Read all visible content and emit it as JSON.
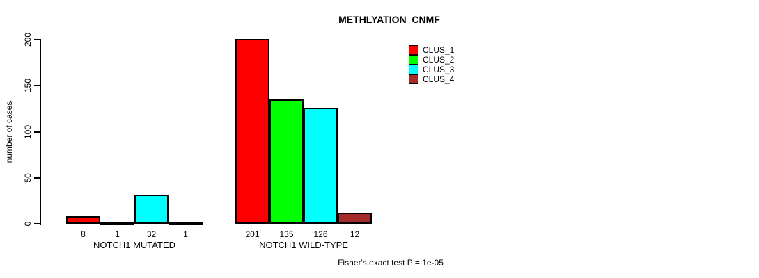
{
  "chart_data": {
    "type": "bar",
    "title": "METHLYATION_CNMF",
    "ylabel": "number of cases",
    "xlabel": "",
    "ylim": [
      0,
      200
    ],
    "yticks": [
      0,
      50,
      100,
      150,
      200
    ],
    "grid": false,
    "legend_position": "top-right",
    "categories": [
      "NOTCH1 MUTATED",
      "NOTCH1 WILD-TYPE"
    ],
    "series": [
      {
        "name": "CLUS_1",
        "color": "#FF0000",
        "values": [
          8,
          201
        ]
      },
      {
        "name": "CLUS_2",
        "color": "#00FF00",
        "values": [
          1,
          135
        ]
      },
      {
        "name": "CLUS_3",
        "color": "#00FFFF",
        "values": [
          32,
          126
        ]
      },
      {
        "name": "CLUS_4",
        "color": "#A52A2A",
        "values": [
          1,
          12
        ]
      }
    ],
    "bar_value_labels": [
      [
        8,
        1,
        32,
        1
      ],
      [
        201,
        135,
        126,
        12
      ]
    ],
    "annotation": "Fisher's exact test P = 1e-05"
  }
}
